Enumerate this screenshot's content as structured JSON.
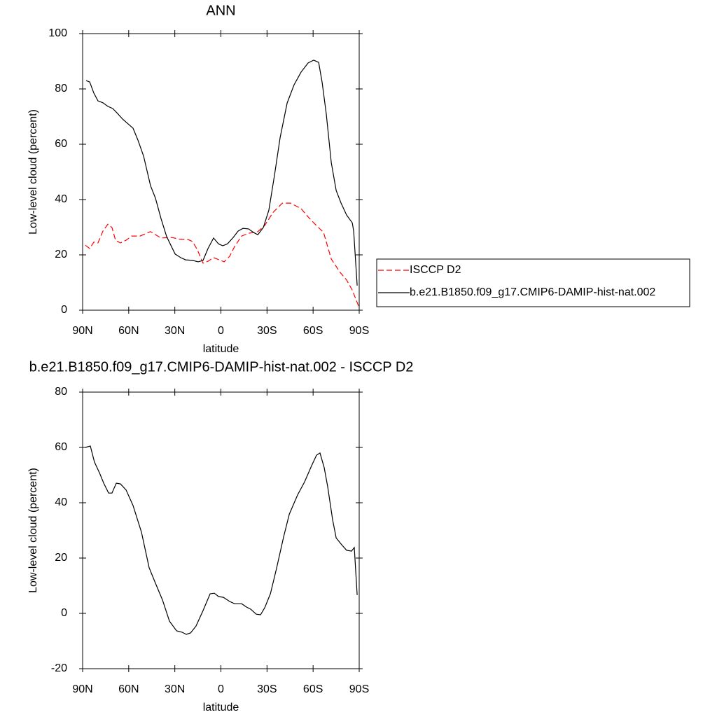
{
  "chart_data": [
    {
      "type": "line",
      "title": "ANN",
      "xlabel": "latitude",
      "ylabel": "Low-level cloud (percent)",
      "xlim": [
        90,
        -90
      ],
      "xticks": [
        {
          "value": 90,
          "label": "90N"
        },
        {
          "value": 60,
          "label": "60N"
        },
        {
          "value": 30,
          "label": "30N"
        },
        0,
        {
          "value": -30,
          "label": "30S"
        },
        {
          "value": -60,
          "label": "60S"
        },
        {
          "value": -90,
          "label": "90S"
        }
      ],
      "ylim": [
        0,
        100
      ],
      "yticks": [
        0,
        20,
        40,
        60,
        80,
        100
      ],
      "legend": "right",
      "series": [
        {
          "name": "ISCCP D2",
          "color": "#ff0000",
          "dash": true,
          "x": [
            88.2,
            85.4,
            82.7,
            80,
            76.8,
            73.6,
            70.9,
            68.6,
            65.4,
            61.7,
            58.1,
            52.6,
            45.8,
            39,
            32.1,
            26.2,
            21.6,
            18.4,
            15.3,
            11.6,
            8.4,
            4.8,
            1.1,
            -2.1,
            -5.7,
            -8.9,
            -13.5,
            -18,
            -24,
            -28.5,
            -34,
            -40,
            -45.4,
            -52.2,
            -56.8,
            -61.3,
            -66.8,
            -71.8,
            -77.3,
            -81.8,
            -85.5,
            -89.6
          ],
          "values": [
            23.5,
            22.3,
            24.6,
            24.3,
            28.6,
            31.1,
            29.9,
            25.3,
            24.3,
            25.3,
            26.8,
            26.8,
            28.4,
            26.1,
            26.3,
            25.6,
            25.6,
            24.8,
            21.8,
            17,
            17.7,
            19,
            18.2,
            17.5,
            19.5,
            23,
            26.8,
            27.8,
            28.4,
            30.6,
            35.4,
            38.7,
            38.7,
            36.7,
            33.7,
            31.1,
            28.1,
            18.5,
            13.9,
            10.9,
            7.3,
            1.5
          ]
        },
        {
          "name": "b.e21.B1850.f09_g17.CMIP6-DAMIP-hist-nat.002",
          "color": "#000000",
          "dash": false,
          "x": [
            87.7,
            85.4,
            82.7,
            80,
            76.8,
            73.6,
            70.4,
            67.2,
            64,
            57.2,
            54,
            50.3,
            45.8,
            42.6,
            39,
            35.3,
            29.8,
            26.2,
            23,
            18.4,
            14.8,
            11.6,
            8.4,
            4.8,
            1.6,
            -1.2,
            -4.3,
            -8,
            -11.2,
            -14.4,
            -18,
            -21.2,
            -24,
            -27.6,
            -31.2,
            -34.9,
            -38.5,
            -43.1,
            -47.6,
            -52.2,
            -56.8,
            -60.4,
            -63.6,
            -65.9,
            -68.6,
            -71.8,
            -75,
            -78.2,
            -81.8,
            -85.5,
            -86.4,
            -88.7
          ],
          "values": [
            83,
            82.5,
            78.5,
            75.7,
            75,
            73.7,
            72.9,
            71.1,
            69.1,
            65.8,
            61.5,
            55.7,
            45,
            40.5,
            33.2,
            26.6,
            20.3,
            19,
            18.2,
            18,
            17.5,
            18,
            22.3,
            26.1,
            24,
            23.3,
            24,
            26.3,
            28.6,
            29.6,
            29.4,
            28.1,
            27.3,
            29.9,
            36.2,
            48.9,
            62.3,
            74.9,
            81.5,
            86.1,
            89.4,
            90.4,
            89.6,
            82.3,
            70.9,
            53.4,
            43.3,
            38.7,
            34.4,
            31.6,
            28.6,
            8.9
          ]
        }
      ]
    },
    {
      "type": "line",
      "title": "b.e21.B1850.f09_g17.CMIP6-DAMIP-hist-nat.002 - ISCCP D2",
      "xlabel": "latitude",
      "ylabel": "Low-level cloud (percent)",
      "xlim": [
        90,
        -90
      ],
      "xticks": [
        {
          "value": 90,
          "label": "90N"
        },
        {
          "value": 60,
          "label": "60N"
        },
        {
          "value": 30,
          "label": "30N"
        },
        0,
        {
          "value": -30,
          "label": "30S"
        },
        {
          "value": -60,
          "label": "60S"
        },
        {
          "value": -90,
          "label": "90S"
        }
      ],
      "ylim": [
        -20,
        80
      ],
      "yticks": [
        -20,
        0,
        20,
        40,
        60,
        80
      ],
      "series": [
        {
          "color": "#000000",
          "dash": false,
          "x": [
            88.2,
            85,
            82.3,
            79.1,
            76.3,
            73.1,
            70.9,
            68.1,
            65.4,
            61.7,
            57.2,
            51.7,
            46.7,
            42.6,
            38,
            33.5,
            28.9,
            25.3,
            22.5,
            19.8,
            16.2,
            11.6,
            7,
            4.3,
            1.6,
            -1.6,
            -5.7,
            -8.9,
            -13.5,
            -16.6,
            -19.4,
            -23,
            -25.8,
            -28.5,
            -32.2,
            -36.2,
            -40.8,
            -44.5,
            -49.9,
            -54.5,
            -59,
            -62.2,
            -64.5,
            -67.2,
            -69.5,
            -72.7,
            -75,
            -78.6,
            -81.8,
            -85,
            -86.8,
            -88.7
          ],
          "values": [
            60,
            60.5,
            54.7,
            50.9,
            47.1,
            43.5,
            43.5,
            47.1,
            46.8,
            44.6,
            39,
            29.4,
            16.5,
            10.9,
            4.8,
            -2.8,
            -6.3,
            -6.8,
            -7.6,
            -7.1,
            -4.6,
            1,
            7.1,
            7.3,
            6.1,
            5.8,
            4.3,
            3.5,
            3.5,
            2.3,
            1.5,
            -0.3,
            -0.5,
            2,
            7.1,
            16.2,
            27.6,
            35.9,
            42.8,
            47.6,
            53.4,
            57.2,
            58,
            52.7,
            45.8,
            33.9,
            27.3,
            24.8,
            22.8,
            22.5,
            23.8,
            6.6
          ]
        }
      ]
    }
  ]
}
